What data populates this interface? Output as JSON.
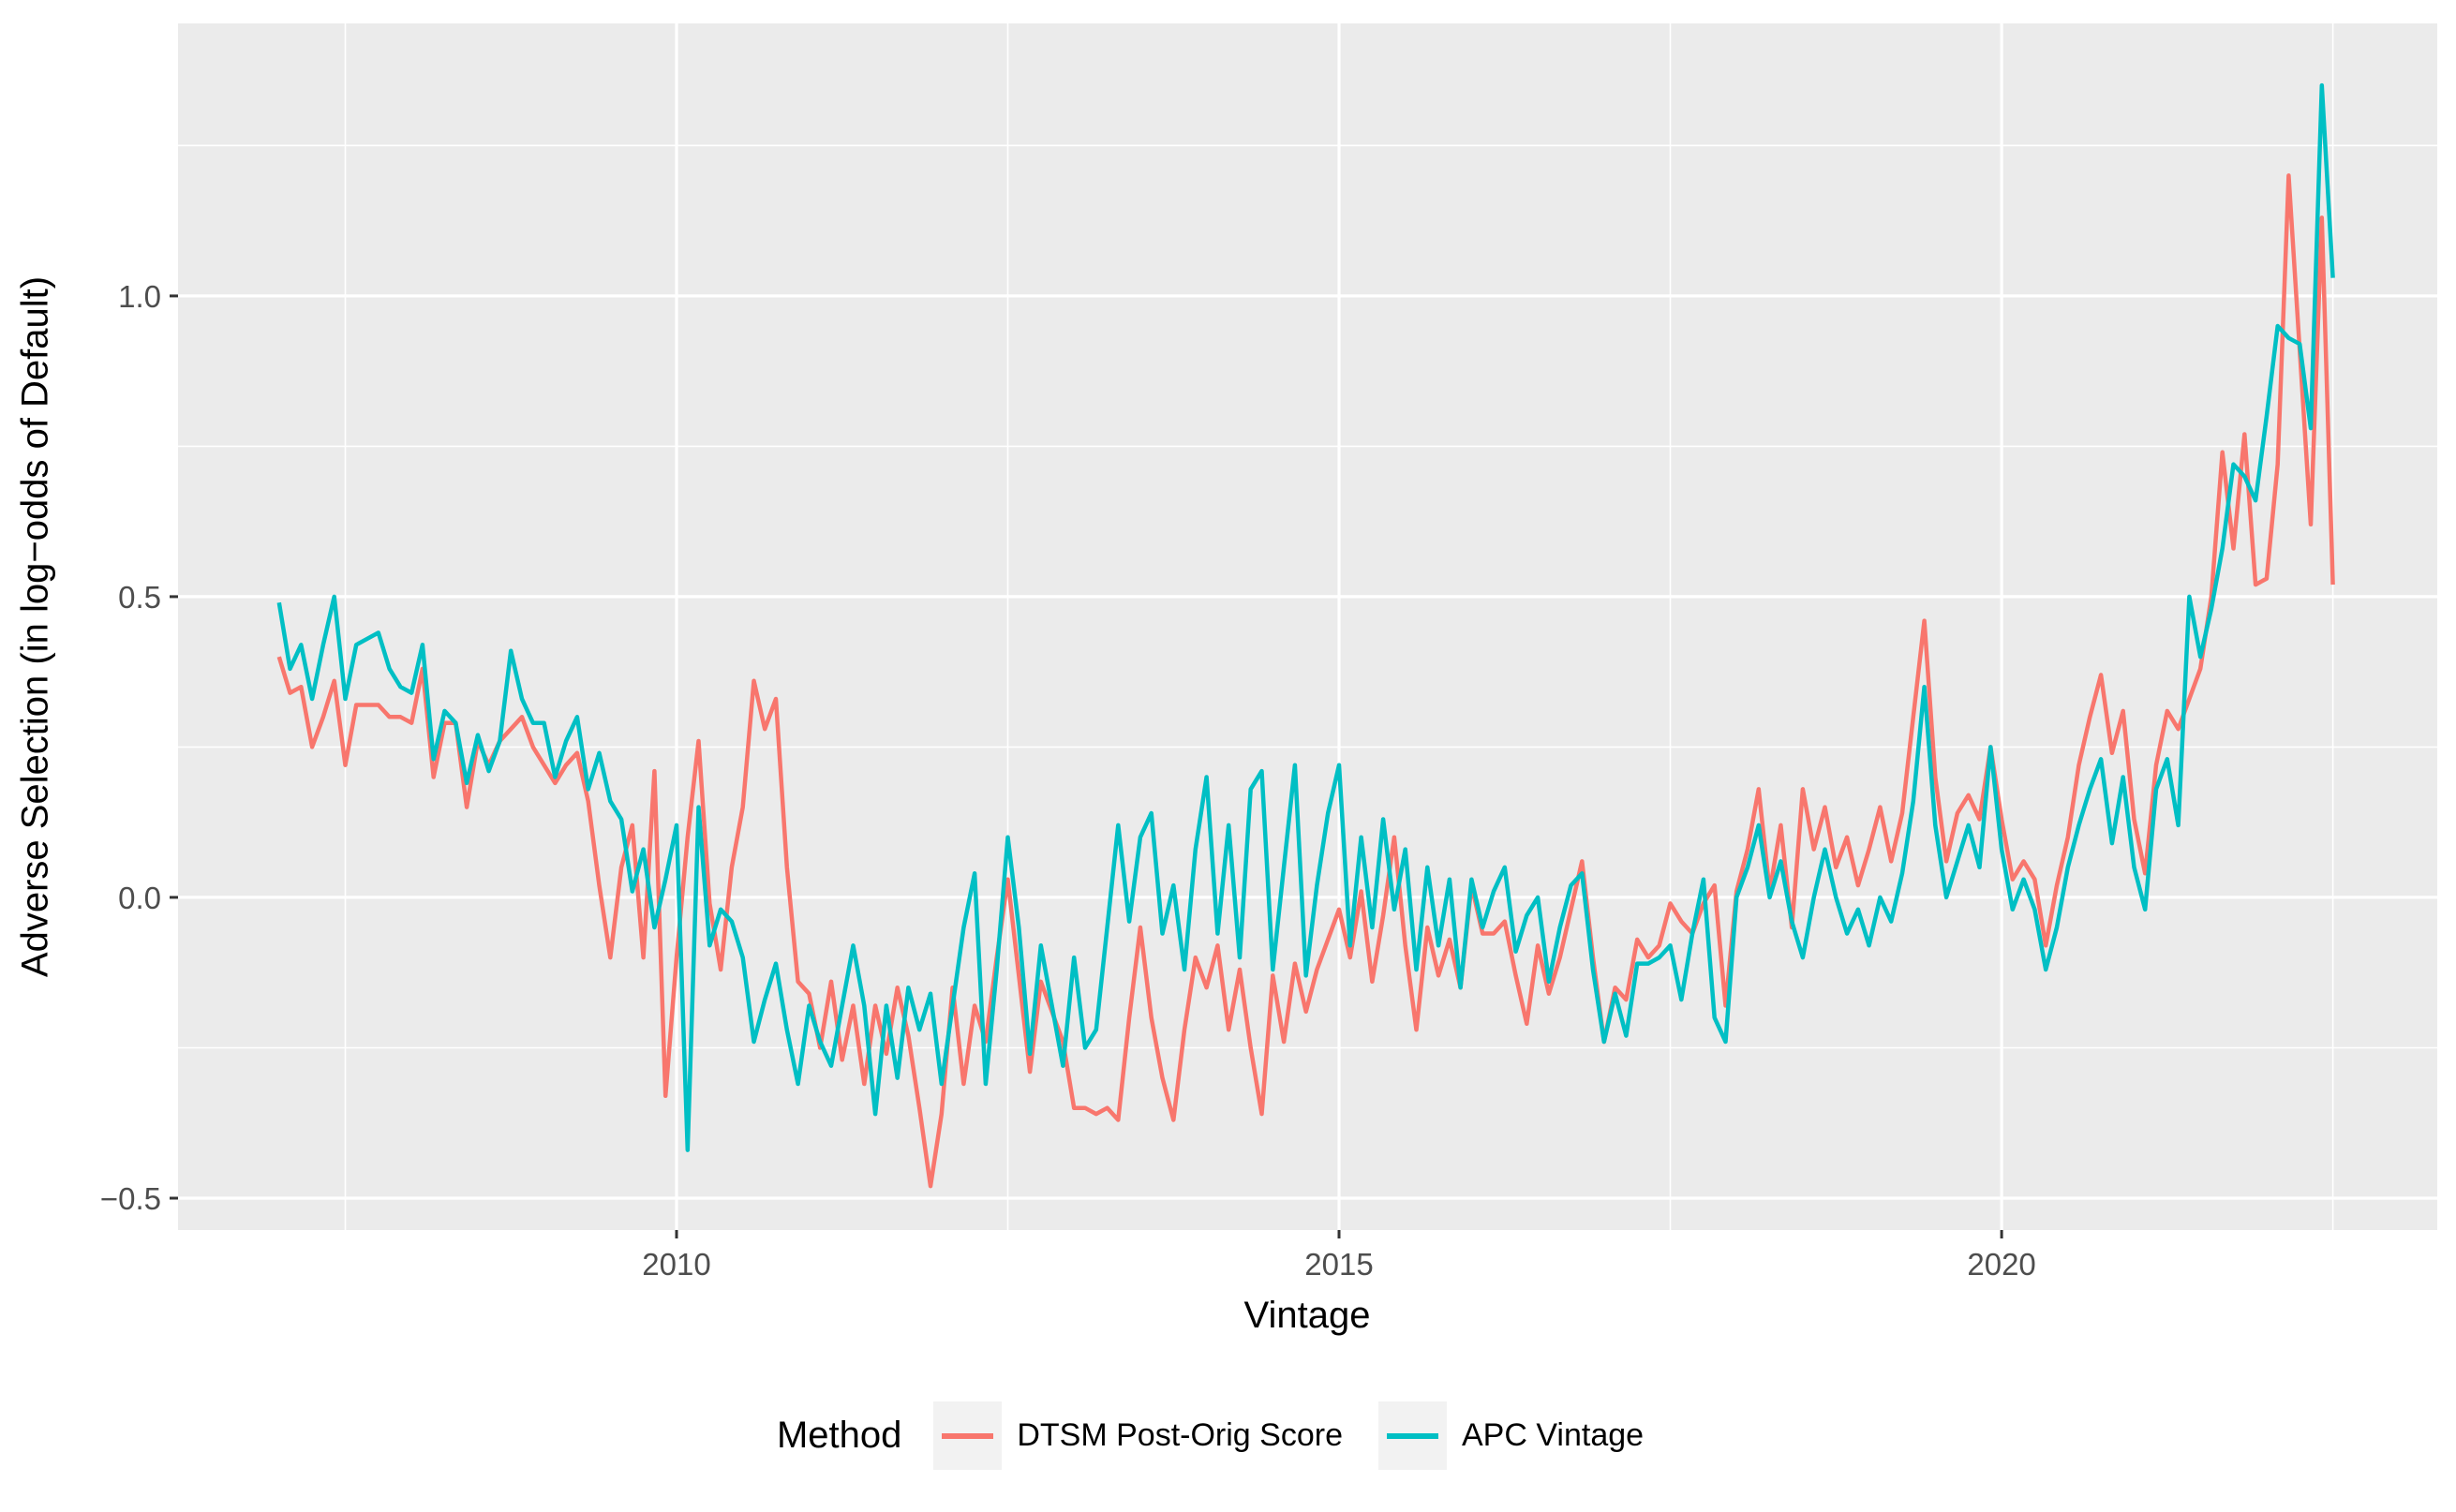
{
  "figure": {
    "x_axis_title": "Vintage",
    "y_axis_title": "Adverse Selection (in log−odds of Default)"
  },
  "legend": {
    "title": "Method",
    "items": [
      {
        "label": "DTSM Post-Orig Score",
        "color": "#F8766D"
      },
      {
        "label": "APC Vintage",
        "color": "#00BFC4"
      }
    ]
  },
  "colors": {
    "panel_fill": "#EBEBEB",
    "grid_major": "#FFFFFF",
    "grid_minor": "#FFFFFF",
    "tick_label": "#4D4D4D",
    "tick_mark": "#333333",
    "axis_title": "#000000",
    "legend_key_fill": "#F2F2F2",
    "series_red": "#F8766D",
    "series_teal": "#00BFC4"
  },
  "chart_data": {
    "type": "line",
    "title": "",
    "xlabel": "Vintage",
    "ylabel": "Adverse Selection (in log−odds of Default)",
    "grid": "on",
    "legend_position": "bottom",
    "xlim": [
      2006.238,
      2023.288
    ],
    "ylim": [
      -0.553,
      1.453
    ],
    "x_major_ticks": [
      {
        "v": 2010,
        "label": "2010"
      },
      {
        "v": 2015,
        "label": "2015"
      },
      {
        "v": 2020,
        "label": "2020"
      }
    ],
    "x_minor_ticks": [
      2007.5,
      2012.5,
      2017.5,
      2022.5
    ],
    "y_major_ticks": [
      {
        "v": 1.0,
        "label": "1.0"
      },
      {
        "v": 0.5,
        "label": "0.5"
      },
      {
        "v": 0.0,
        "label": "0.0"
      },
      {
        "v": -0.5,
        "label": "−0.5"
      }
    ],
    "y_minor_ticks": [
      1.25,
      0.75,
      0.25,
      -0.25
    ],
    "x_start": 2007.0,
    "x_step_years": 0.08333333,
    "series": [
      {
        "name": "DTSM Post-Orig Score",
        "color": "#F8766D",
        "values": [
          0.4,
          0.34,
          0.35,
          0.25,
          0.3,
          0.36,
          0.22,
          0.32,
          0.32,
          0.32,
          0.3,
          0.3,
          0.29,
          0.38,
          0.2,
          0.29,
          0.29,
          0.15,
          0.26,
          0.22,
          0.26,
          0.28,
          0.3,
          0.25,
          0.22,
          0.19,
          0.22,
          0.24,
          0.16,
          0.02,
          -0.1,
          0.05,
          0.12,
          -0.1,
          0.21,
          -0.33,
          -0.1,
          0.1,
          0.26,
          -0.01,
          -0.12,
          0.05,
          0.15,
          0.36,
          0.28,
          0.33,
          0.05,
          -0.14,
          -0.16,
          -0.25,
          -0.14,
          -0.27,
          -0.18,
          -0.31,
          -0.18,
          -0.26,
          -0.15,
          -0.23,
          -0.35,
          -0.48,
          -0.36,
          -0.15,
          -0.31,
          -0.18,
          -0.24,
          -0.1,
          0.03,
          -0.13,
          -0.29,
          -0.14,
          -0.19,
          -0.24,
          -0.35,
          -0.35,
          -0.36,
          -0.35,
          -0.37,
          -0.2,
          -0.05,
          -0.2,
          -0.3,
          -0.37,
          -0.22,
          -0.1,
          -0.15,
          -0.08,
          -0.22,
          -0.12,
          -0.25,
          -0.36,
          -0.13,
          -0.24,
          -0.11,
          -0.19,
          -0.12,
          -0.07,
          -0.02,
          -0.1,
          0.01,
          -0.14,
          -0.03,
          0.1,
          -0.08,
          -0.22,
          -0.05,
          -0.13,
          -0.07,
          -0.15,
          0.02,
          -0.06,
          -0.06,
          -0.04,
          -0.13,
          -0.21,
          -0.08,
          -0.16,
          -0.1,
          -0.02,
          0.06,
          -0.1,
          -0.24,
          -0.15,
          -0.17,
          -0.07,
          -0.1,
          -0.08,
          -0.01,
          -0.04,
          -0.06,
          -0.01,
          0.02,
          -0.18,
          0.01,
          0.08,
          0.18,
          0.01,
          0.12,
          -0.05,
          0.18,
          0.08,
          0.15,
          0.05,
          0.1,
          0.02,
          0.08,
          0.15,
          0.06,
          0.14,
          0.3,
          0.46,
          0.2,
          0.06,
          0.14,
          0.17,
          0.13,
          0.25,
          0.13,
          0.03,
          0.06,
          0.03,
          -0.08,
          0.02,
          0.1,
          0.22,
          0.3,
          0.37,
          0.24,
          0.31,
          0.13,
          0.04,
          0.22,
          0.31,
          0.28,
          0.33,
          0.38,
          0.5,
          0.74,
          0.58,
          0.77,
          0.52,
          0.53,
          0.72,
          1.2,
          0.91,
          0.62,
          1.13,
          0.52
        ]
      },
      {
        "name": "APC Vintage",
        "color": "#00BFC4",
        "values": [
          0.49,
          0.38,
          0.42,
          0.33,
          0.42,
          0.5,
          0.33,
          0.42,
          0.43,
          0.44,
          0.38,
          0.35,
          0.34,
          0.42,
          0.23,
          0.31,
          0.29,
          0.19,
          0.27,
          0.21,
          0.26,
          0.41,
          0.33,
          0.29,
          0.29,
          0.2,
          0.26,
          0.3,
          0.18,
          0.24,
          0.16,
          0.13,
          0.01,
          0.08,
          -0.05,
          0.03,
          0.12,
          -0.42,
          0.15,
          -0.08,
          -0.02,
          -0.04,
          -0.1,
          -0.24,
          -0.17,
          -0.11,
          -0.22,
          -0.31,
          -0.18,
          -0.24,
          -0.28,
          -0.18,
          -0.08,
          -0.18,
          -0.36,
          -0.18,
          -0.3,
          -0.15,
          -0.22,
          -0.16,
          -0.31,
          -0.18,
          -0.05,
          0.04,
          -0.31,
          -0.12,
          0.1,
          -0.05,
          -0.26,
          -0.08,
          -0.18,
          -0.28,
          -0.1,
          -0.25,
          -0.22,
          -0.05,
          0.12,
          -0.04,
          0.1,
          0.14,
          -0.06,
          0.02,
          -0.12,
          0.08,
          0.2,
          -0.06,
          0.12,
          -0.1,
          0.18,
          0.21,
          -0.12,
          0.05,
          0.22,
          -0.13,
          0.02,
          0.14,
          0.22,
          -0.08,
          0.1,
          -0.05,
          0.13,
          -0.02,
          0.08,
          -0.12,
          0.05,
          -0.08,
          0.03,
          -0.15,
          0.03,
          -0.05,
          0.01,
          0.05,
          -0.09,
          -0.03,
          0.0,
          -0.14,
          -0.05,
          0.02,
          0.04,
          -0.12,
          -0.24,
          -0.16,
          -0.23,
          -0.11,
          -0.11,
          -0.1,
          -0.08,
          -0.17,
          -0.06,
          0.03,
          -0.2,
          -0.24,
          0.0,
          0.05,
          0.12,
          0.0,
          0.06,
          -0.04,
          -0.1,
          0.0,
          0.08,
          0.0,
          -0.06,
          -0.02,
          -0.08,
          0.0,
          -0.04,
          0.04,
          0.16,
          0.35,
          0.12,
          0.0,
          0.06,
          0.12,
          0.05,
          0.25,
          0.08,
          -0.02,
          0.03,
          -0.02,
          -0.12,
          -0.05,
          0.05,
          0.12,
          0.18,
          0.23,
          0.09,
          0.2,
          0.05,
          -0.02,
          0.18,
          0.23,
          0.12,
          0.5,
          0.4,
          0.48,
          0.58,
          0.72,
          0.7,
          0.66,
          0.8,
          0.95,
          0.93,
          0.92,
          0.78,
          1.35,
          1.03
        ]
      }
    ]
  }
}
